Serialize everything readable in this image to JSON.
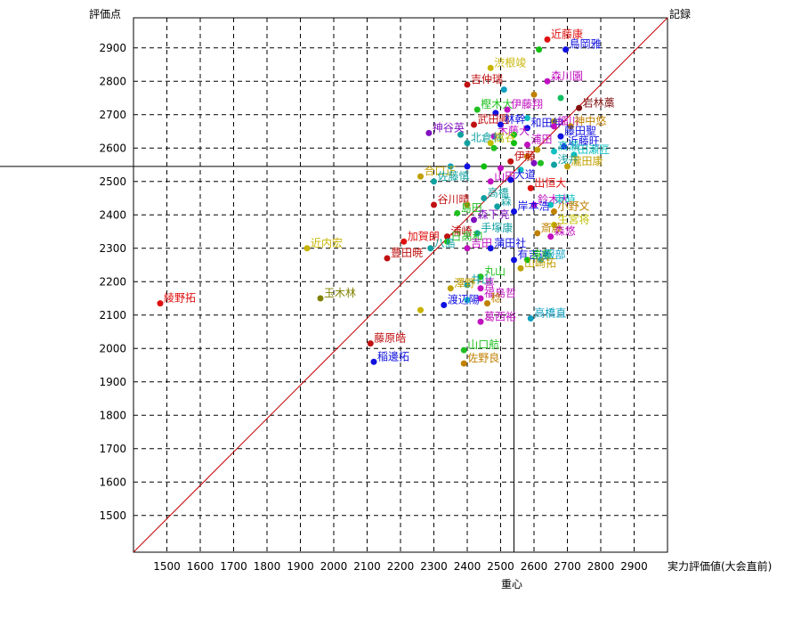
{
  "chart_data": {
    "type": "scatter",
    "ylabel": "評価点",
    "xlabel": "実力評価値(大会直前)",
    "top_right_label": "記録",
    "center_label": "重心",
    "x_ticks": [
      1500,
      1600,
      1700,
      1800,
      1900,
      2000,
      2100,
      2200,
      2300,
      2400,
      2500,
      2600,
      2700,
      2800,
      2900
    ],
    "y_ticks": [
      1500,
      1600,
      1700,
      1800,
      1900,
      2000,
      2100,
      2200,
      2300,
      2400,
      2500,
      2600,
      2700,
      2800,
      2900
    ],
    "xlim": [
      1400,
      3000
    ],
    "ylim": [
      1390,
      2990
    ],
    "centroid": {
      "x": 2540,
      "y": 2545
    },
    "diagonal": true,
    "grid": true,
    "points": [
      {
        "name": "近藤康",
        "x": 2640,
        "y": 2925,
        "color": "#e01010"
      },
      {
        "name": "鳥岡雅",
        "x": 2695,
        "y": 2895,
        "color": "#1010e0"
      },
      {
        "name": "",
        "x": 2615,
        "y": 2895,
        "color": "#10c010"
      },
      {
        "name": "渋根竣",
        "x": 2470,
        "y": 2840,
        "color": "#c8b400"
      },
      {
        "name": "吉仲瑞",
        "x": 2400,
        "y": 2790,
        "color": "#c01010"
      },
      {
        "name": "森川園",
        "x": 2640,
        "y": 2800,
        "color": "#c010c0"
      },
      {
        "name": "",
        "x": 2510,
        "y": 2775,
        "color": "#10a0c0"
      },
      {
        "name": "",
        "x": 2600,
        "y": 2760,
        "color": "#c08000"
      },
      {
        "name": "",
        "x": 2680,
        "y": 2750,
        "color": "#10c060"
      },
      {
        "name": "岩林藁",
        "x": 2735,
        "y": 2720,
        "color": "#801010"
      },
      {
        "name": "樫木大",
        "x": 2430,
        "y": 2715,
        "color": "#20c020"
      },
      {
        "name": "伊藤翔",
        "x": 2520,
        "y": 2715,
        "color": "#c010c0"
      },
      {
        "name": "",
        "x": 2485,
        "y": 2705,
        "color": "#1010e0"
      },
      {
        "name": "",
        "x": 2580,
        "y": 2690,
        "color": "#10c0c0"
      },
      {
        "name": "",
        "x": 2660,
        "y": 2680,
        "color": "#c0a000"
      },
      {
        "name": "武田圓",
        "x": 2420,
        "y": 2670,
        "color": "#c01010"
      },
      {
        "name": "林幹",
        "x": 2500,
        "y": 2670,
        "color": "#1010e0"
      },
      {
        "name": "和田伸",
        "x": 2580,
        "y": 2660,
        "color": "#1010e0"
      },
      {
        "name": "細川",
        "x": 2660,
        "y": 2665,
        "color": "#c010c0"
      },
      {
        "name": "神中悠",
        "x": 2710,
        "y": 2665,
        "color": "#c08000"
      },
      {
        "name": "神谷英",
        "x": 2285,
        "y": 2645,
        "color": "#8010c0"
      },
      {
        "name": "",
        "x": 2380,
        "y": 2640,
        "color": "#10a0a0"
      },
      {
        "name": "木藤大",
        "x": 2480,
        "y": 2635,
        "color": "#c010c0"
      },
      {
        "name": "",
        "x": 2540,
        "y": 2640,
        "color": "#20c020"
      },
      {
        "name": "藤田聖",
        "x": 2680,
        "y": 2635,
        "color": "#1010e0"
      },
      {
        "name": "北倉林",
        "x": 2400,
        "y": 2615,
        "color": "#10a0a0"
      },
      {
        "name": "嵩谷",
        "x": 2470,
        "y": 2615,
        "color": "#c0c000"
      },
      {
        "name": "",
        "x": 2540,
        "y": 2615,
        "color": "#10c010"
      },
      {
        "name": "浦田",
        "x": 2580,
        "y": 2610,
        "color": "#c010c0"
      },
      {
        "name": "近藤旺",
        "x": 2690,
        "y": 2605,
        "color": "#1010e0"
      },
      {
        "name": "",
        "x": 2480,
        "y": 2600,
        "color": "#20c020"
      },
      {
        "name": "",
        "x": 2610,
        "y": 2595,
        "color": "#c0a000"
      },
      {
        "name": "高瀬",
        "x": 2660,
        "y": 2590,
        "color": "#10c0c0"
      },
      {
        "name": "田瀬匠",
        "x": 2720,
        "y": 2580,
        "color": "#10c0c0"
      },
      {
        "name": "",
        "x": 2580,
        "y": 2575,
        "color": "#c08000"
      },
      {
        "name": "伊藤",
        "x": 2530,
        "y": 2560,
        "color": "#c01010"
      },
      {
        "name": "",
        "x": 2600,
        "y": 2555,
        "color": "#8010c0"
      },
      {
        "name": "",
        "x": 2620,
        "y": 2555,
        "color": "#20c020"
      },
      {
        "name": "浅井",
        "x": 2660,
        "y": 2550,
        "color": "#10a0a0"
      },
      {
        "name": "瀧田康",
        "x": 2700,
        "y": 2545,
        "color": "#c0a000"
      },
      {
        "name": "",
        "x": 2350,
        "y": 2545,
        "color": "#10a0c0"
      },
      {
        "name": "",
        "x": 2400,
        "y": 2545,
        "color": "#1010e0"
      },
      {
        "name": "",
        "x": 2450,
        "y": 2545,
        "color": "#10c010"
      },
      {
        "name": "",
        "x": 2500,
        "y": 2540,
        "color": "#c010c0"
      },
      {
        "name": "",
        "x": 2560,
        "y": 2535,
        "color": "#10c0c0"
      },
      {
        "name": "合口正",
        "x": 2260,
        "y": 2515,
        "color": "#c0a000"
      },
      {
        "name": "佐藤慎",
        "x": 2300,
        "y": 2500,
        "color": "#10a0a0"
      },
      {
        "name": "山田",
        "x": 2470,
        "y": 2500,
        "color": "#c010c0"
      },
      {
        "name": "大道",
        "x": 2530,
        "y": 2505,
        "color": "#1010e0"
      },
      {
        "name": "出恒大",
        "x": 2590,
        "y": 2480,
        "color": "#e01010"
      },
      {
        "name": "高橋",
        "x": 2450,
        "y": 2450,
        "color": "#10a0a0"
      },
      {
        "name": "谷川晴",
        "x": 2300,
        "y": 2430,
        "color": "#c01010"
      },
      {
        "name": "",
        "x": 2400,
        "y": 2430,
        "color": "#c08000"
      },
      {
        "name": "森",
        "x": 2490,
        "y": 2425,
        "color": "#10a0a0"
      },
      {
        "name": "鈴木大",
        "x": 2600,
        "y": 2430,
        "color": "#c010c0"
      },
      {
        "name": "東時",
        "x": 2650,
        "y": 2430,
        "color": "#10c0c0"
      },
      {
        "name": "岸本浩",
        "x": 2540,
        "y": 2410,
        "color": "#1010e0"
      },
      {
        "name": "小野文",
        "x": 2660,
        "y": 2410,
        "color": "#c08000"
      },
      {
        "name": "島田",
        "x": 2370,
        "y": 2405,
        "color": "#20c020"
      },
      {
        "name": "森下亮",
        "x": 2420,
        "y": 2385,
        "color": "#8010c0"
      },
      {
        "name": "生宮将",
        "x": 2660,
        "y": 2370,
        "color": "#c0c000"
      },
      {
        "name": "手塚康",
        "x": 2430,
        "y": 2345,
        "color": "#10a0a0"
      },
      {
        "name": "斎藤",
        "x": 2610,
        "y": 2345,
        "color": "#c08000"
      },
      {
        "name": "浦崎",
        "x": 2340,
        "y": 2335,
        "color": "#c01010"
      },
      {
        "name": "森悠",
        "x": 2650,
        "y": 2335,
        "color": "#c010c0"
      },
      {
        "name": "加賀朗",
        "x": 2210,
        "y": 2320,
        "color": "#e01010"
      },
      {
        "name": "日高和",
        "x": 2340,
        "y": 2320,
        "color": "#20c020"
      },
      {
        "name": "近内宏",
        "x": 1920,
        "y": 2300,
        "color": "#c8b400"
      },
      {
        "name": "八島",
        "x": 2290,
        "y": 2300,
        "color": "#10a0a0"
      },
      {
        "name": "吉田",
        "x": 2400,
        "y": 2300,
        "color": "#c010c0"
      },
      {
        "name": "蒲田社",
        "x": 2470,
        "y": 2300,
        "color": "#1010e0"
      },
      {
        "name": "豊田暁",
        "x": 2160,
        "y": 2270,
        "color": "#c01010"
      },
      {
        "name": "有吉達",
        "x": 2540,
        "y": 2265,
        "color": "#1010e0"
      },
      {
        "name": "遠藤",
        "x": 2580,
        "y": 2265,
        "color": "#10c010"
      },
      {
        "name": "服部",
        "x": 2620,
        "y": 2265,
        "color": "#10a0c0"
      },
      {
        "name": "山崎拓",
        "x": 2560,
        "y": 2240,
        "color": "#c0a000"
      },
      {
        "name": "丸山",
        "x": 2440,
        "y": 2215,
        "color": "#20c020"
      },
      {
        "name": "井山",
        "x": 2400,
        "y": 2190,
        "color": "#10a0a0"
      },
      {
        "name": "澤野",
        "x": 2350,
        "y": 2180,
        "color": "#c0a000"
      },
      {
        "name": "喜",
        "x": 2440,
        "y": 2180,
        "color": "#c010c0"
      },
      {
        "name": "福島哲",
        "x": 2440,
        "y": 2150,
        "color": "#c010c0"
      },
      {
        "name": "",
        "x": 2400,
        "y": 2145,
        "color": "#10c0c0"
      },
      {
        "name": "稔",
        "x": 2460,
        "y": 2135,
        "color": "#c08000"
      },
      {
        "name": "渡辺陽",
        "x": 2330,
        "y": 2130,
        "color": "#1010e0"
      },
      {
        "name": "綾野拓",
        "x": 1480,
        "y": 2135,
        "color": "#e01010"
      },
      {
        "name": "玉木林",
        "x": 1960,
        "y": 2150,
        "color": "#808000"
      },
      {
        "name": "",
        "x": 2260,
        "y": 2115,
        "color": "#c8b400"
      },
      {
        "name": "葛西裕",
        "x": 2440,
        "y": 2080,
        "color": "#c010c0"
      },
      {
        "name": "高橋直",
        "x": 2590,
        "y": 2090,
        "color": "#10a0c0"
      },
      {
        "name": "藤原皓",
        "x": 2110,
        "y": 2015,
        "color": "#c01010"
      },
      {
        "name": "山口航",
        "x": 2390,
        "y": 1995,
        "color": "#20c020"
      },
      {
        "name": "稲邊拓",
        "x": 2120,
        "y": 1960,
        "color": "#1010e0"
      },
      {
        "name": "佐野良",
        "x": 2390,
        "y": 1955,
        "color": "#c08000"
      }
    ]
  }
}
